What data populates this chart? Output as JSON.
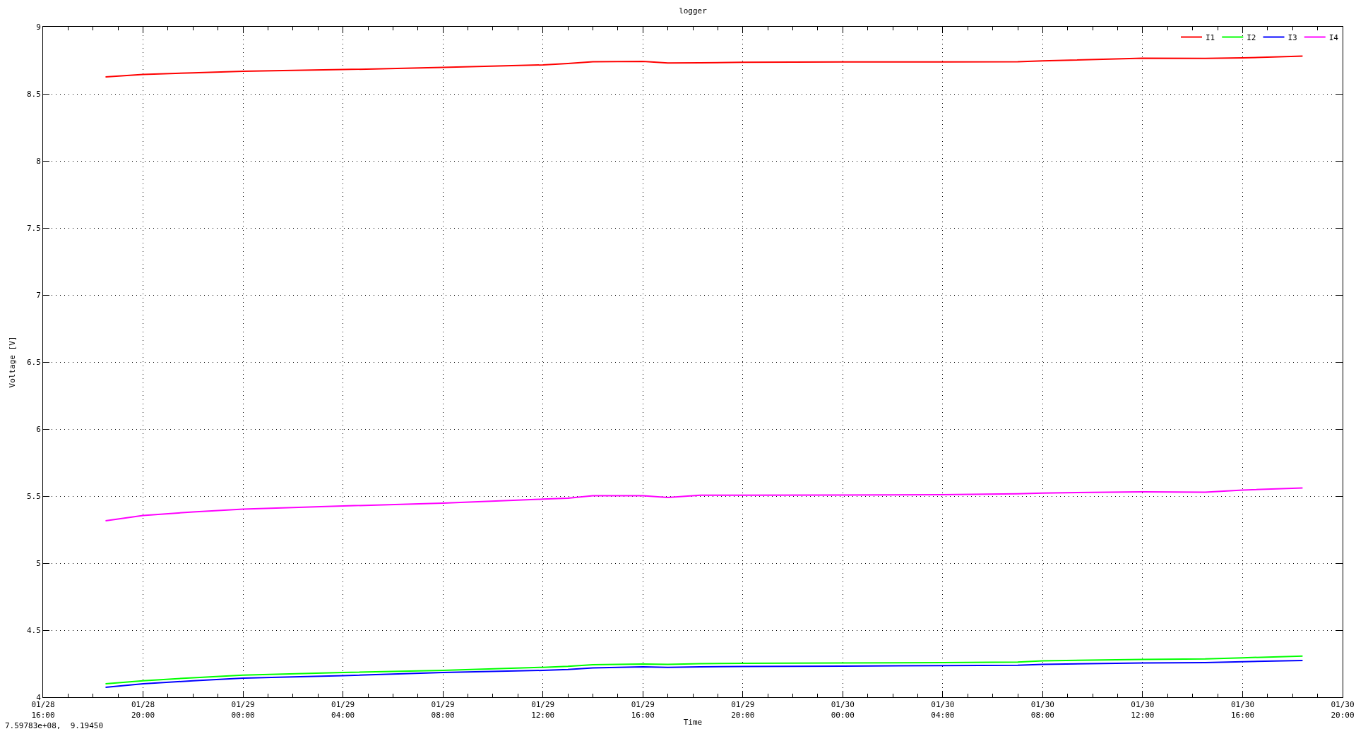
{
  "chart_data": {
    "type": "line",
    "title": "logger",
    "xlabel": "Time",
    "ylabel": "Voltage [V]",
    "x": [
      "--01-28T18:30",
      "--01-28T20:00",
      "--01-28T22:00",
      "--01-29T00:00",
      "--01-29T04:00",
      "--01-29T08:00",
      "--01-29T12:00",
      "--01-29T13:00",
      "--01-29T14:00",
      "--01-29T16:00",
      "--01-29T17:00",
      "--01-29T18:18",
      "--01-29T20:00",
      "--01-30T00:00",
      "--01-30T04:00",
      "--01-30T07:00",
      "--01-30T08:00",
      "--01-30T12:00",
      "--01-30T14:30",
      "--01-30T16:00",
      "--01-30T18:24"
    ],
    "series": [
      {
        "name": "I1",
        "color": "#ff0000",
        "values": [
          8.626,
          8.645,
          8.657,
          8.668,
          8.681,
          8.697,
          8.716,
          8.726,
          8.739,
          8.742,
          8.73,
          8.732,
          8.735,
          8.738,
          8.738,
          8.74,
          8.746,
          8.766,
          8.765,
          8.768,
          8.781
        ]
      },
      {
        "name": "I2",
        "color": "#00ff00",
        "values": [
          4.1,
          4.123,
          4.145,
          4.165,
          4.184,
          4.2,
          4.223,
          4.23,
          4.242,
          4.248,
          4.245,
          4.25,
          4.252,
          4.255,
          4.258,
          4.262,
          4.271,
          4.281,
          4.285,
          4.294,
          4.306
        ]
      },
      {
        "name": "I3",
        "color": "#0000ff",
        "values": [
          4.074,
          4.1,
          4.122,
          4.142,
          4.161,
          4.184,
          4.2,
          4.207,
          4.219,
          4.226,
          4.223,
          4.226,
          4.229,
          4.232,
          4.235,
          4.238,
          4.245,
          4.255,
          4.258,
          4.265,
          4.274
        ]
      },
      {
        "name": "I4",
        "color": "#ff00ff",
        "values": [
          5.316,
          5.355,
          5.382,
          5.403,
          5.426,
          5.448,
          5.477,
          5.484,
          5.503,
          5.503,
          5.49,
          5.506,
          5.507,
          5.508,
          5.51,
          5.517,
          5.523,
          5.532,
          5.529,
          5.545,
          5.561
        ]
      }
    ],
    "xlim": [
      "--01-28T16:00",
      "--01-30T20:00"
    ],
    "xticks": [
      {
        "value": "--01-28T16:00",
        "label": "01/28\n16:00"
      },
      {
        "value": "--01-28T17:00",
        "label": null
      },
      {
        "value": "--01-28T18:00",
        "label": null
      },
      {
        "value": "--01-28T19:00",
        "label": null
      },
      {
        "value": "--01-28T20:00",
        "label": "01/28\n20:00"
      },
      {
        "value": "--01-28T21:00",
        "label": null
      },
      {
        "value": "--01-28T22:00",
        "label": null
      },
      {
        "value": "--01-28T23:00",
        "label": null
      },
      {
        "value": "--01-29T00:00",
        "label": "01/29\n00:00"
      },
      {
        "value": "--01-29T01:00",
        "label": null
      },
      {
        "value": "--01-29T02:00",
        "label": null
      },
      {
        "value": "--01-29T03:00",
        "label": null
      },
      {
        "value": "--01-29T04:00",
        "label": "01/29\n04:00"
      },
      {
        "value": "--01-29T05:00",
        "label": null
      },
      {
        "value": "--01-29T06:00",
        "label": null
      },
      {
        "value": "--01-29T07:00",
        "label": null
      },
      {
        "value": "--01-29T08:00",
        "label": "01/29\n08:00"
      },
      {
        "value": "--01-29T09:00",
        "label": null
      },
      {
        "value": "--01-29T10:00",
        "label": null
      },
      {
        "value": "--01-29T11:00",
        "label": null
      },
      {
        "value": "--01-29T12:00",
        "label": "01/29\n12:00"
      },
      {
        "value": "--01-29T13:00",
        "label": null
      },
      {
        "value": "--01-29T14:00",
        "label": null
      },
      {
        "value": "--01-29T15:00",
        "label": null
      },
      {
        "value": "--01-29T16:00",
        "label": "01/29\n16:00"
      },
      {
        "value": "--01-29T17:00",
        "label": null
      },
      {
        "value": "--01-29T18:00",
        "label": null
      },
      {
        "value": "--01-29T19:00",
        "label": null
      },
      {
        "value": "--01-29T20:00",
        "label": "01/29\n20:00"
      },
      {
        "value": "--01-29T21:00",
        "label": null
      },
      {
        "value": "--01-29T22:00",
        "label": null
      },
      {
        "value": "--01-29T23:00",
        "label": null
      },
      {
        "value": "--01-30T00:00",
        "label": "01/30\n00:00"
      },
      {
        "value": "--01-30T01:00",
        "label": null
      },
      {
        "value": "--01-30T02:00",
        "label": null
      },
      {
        "value": "--01-30T03:00",
        "label": null
      },
      {
        "value": "--01-30T04:00",
        "label": "01/30\n04:00"
      },
      {
        "value": "--01-30T05:00",
        "label": null
      },
      {
        "value": "--01-30T06:00",
        "label": null
      },
      {
        "value": "--01-30T07:00",
        "label": null
      },
      {
        "value": "--01-30T08:00",
        "label": "01/30\n08:00"
      },
      {
        "value": "--01-30T09:00",
        "label": null
      },
      {
        "value": "--01-30T10:00",
        "label": null
      },
      {
        "value": "--01-30T11:00",
        "label": null
      },
      {
        "value": "--01-30T12:00",
        "label": "01/30\n12:00"
      },
      {
        "value": "--01-30T13:00",
        "label": null
      },
      {
        "value": "--01-30T14:00",
        "label": null
      },
      {
        "value": "--01-30T15:00",
        "label": null
      },
      {
        "value": "--01-30T16:00",
        "label": "01/30\n16:00"
      },
      {
        "value": "--01-30T17:00",
        "label": null
      },
      {
        "value": "--01-30T18:00",
        "label": null
      },
      {
        "value": "--01-30T19:00",
        "label": null
      },
      {
        "value": "--01-30T20:00",
        "label": "01/30\n20:00"
      }
    ],
    "ylim": [
      4,
      9
    ],
    "yticks": [
      4,
      4.5,
      5,
      5.5,
      6,
      6.5,
      7,
      7.5,
      8,
      8.5,
      9
    ],
    "grid": true,
    "legend": "top right",
    "line_style": "solid",
    "annotations": [
      "7.59783e+08,  9.19450"
    ]
  }
}
